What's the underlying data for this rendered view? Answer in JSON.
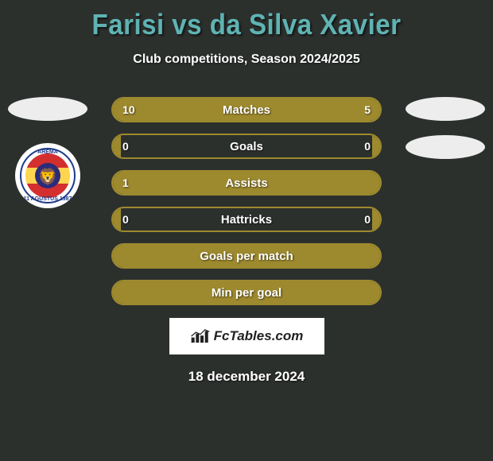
{
  "title": "Farisi vs da Silva Xavier",
  "subtitle": "Club competitions, Season 2024/2025",
  "date": "18 december 2024",
  "brand": "FcTables.com",
  "colors": {
    "title": "#5fb3b3",
    "bar": "#9e8a2e",
    "bg": "#2c302d",
    "text": "#ffffff"
  },
  "left_club": {
    "name": "AREMA",
    "bottom": "11 AGUSTUS 1987",
    "symbol": "🦁",
    "ring_color": "#1e3a8a",
    "stripe1": "#d32f2f",
    "stripe2": "#ffd54f"
  },
  "stats": [
    {
      "label": "Matches",
      "left_val": "10",
      "right_val": "5",
      "left_pct": 66.7,
      "right_pct": 33.3
    },
    {
      "label": "Goals",
      "left_val": "0",
      "right_val": "0",
      "left_pct": 3,
      "right_pct": 3
    },
    {
      "label": "Assists",
      "left_val": "1",
      "right_val": "",
      "left_pct": 100,
      "right_pct": 0
    },
    {
      "label": "Hattricks",
      "left_val": "0",
      "right_val": "0",
      "left_pct": 3,
      "right_pct": 3
    },
    {
      "label": "Goals per match",
      "left_val": "",
      "right_val": "",
      "left_pct": 100,
      "right_pct": 0
    },
    {
      "label": "Min per goal",
      "left_val": "",
      "right_val": "",
      "left_pct": 100,
      "right_pct": 0
    }
  ]
}
